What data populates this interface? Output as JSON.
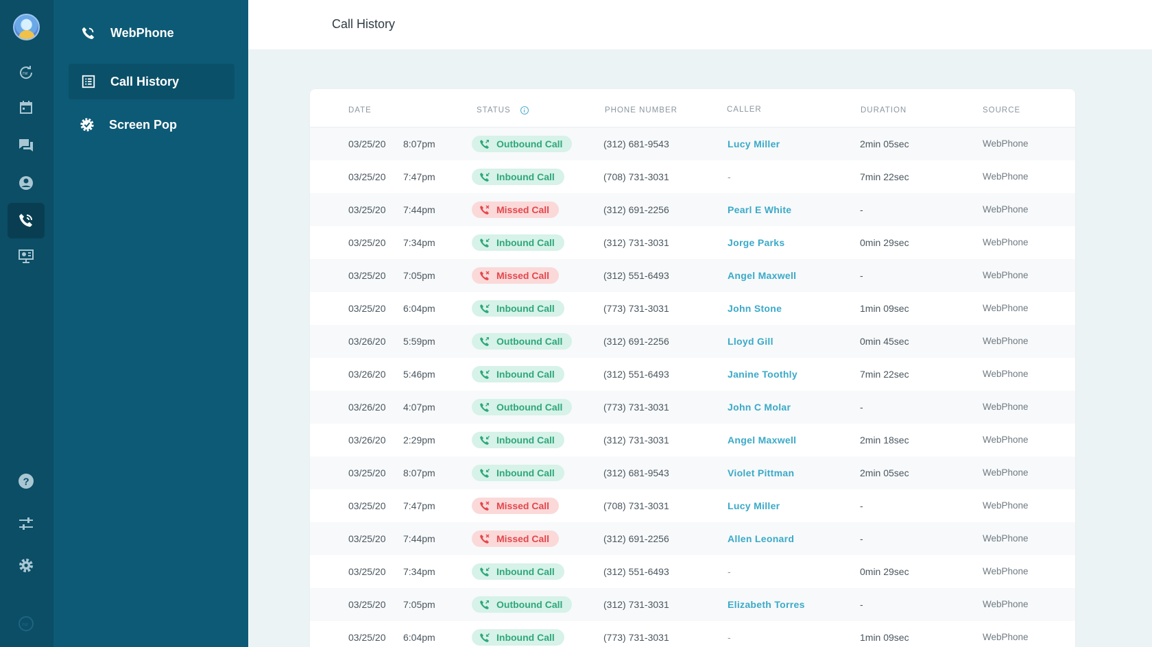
{
  "colors": {
    "rail": "#0b4e66",
    "subnav": "#0d5a76",
    "accent": "#3aa9c8",
    "inbound": "#2ea77b",
    "missed": "#e2474c"
  },
  "rail": {
    "icons": [
      "refresh-rw-icon",
      "calendar-icon",
      "chat-icon",
      "user-icon",
      "phone-icon",
      "screen-pop-icon",
      "help-icon",
      "sliders-icon",
      "gear-icon",
      "rw-logo-icon"
    ]
  },
  "subnav": {
    "items": [
      {
        "label": "WebPhone",
        "icon": "webphone-icon"
      },
      {
        "label": "Call History",
        "icon": "list-icon"
      },
      {
        "label": "Screen Pop",
        "icon": "badge-icon"
      }
    ]
  },
  "header": {
    "title": "Call History"
  },
  "table": {
    "columns": [
      "DATE",
      "STATUS",
      "PHONE NUMBER",
      "CALLER",
      "DURATION",
      "SOURCE"
    ],
    "rows": [
      {
        "date": "03/25/20",
        "time": "8:07pm",
        "status": "Outbound Call",
        "type": "out",
        "phone": "(312) 681-9543",
        "caller": "Lucy Miller",
        "duration": "2min 05sec",
        "source": "WebPhone"
      },
      {
        "date": "03/25/20",
        "time": "7:47pm",
        "status": "Inbound Call",
        "type": "in",
        "phone": "(708) 731-3031",
        "caller": "-",
        "duration": "7min 22sec",
        "source": "WebPhone"
      },
      {
        "date": "03/25/20",
        "time": "7:44pm",
        "status": "Missed Call",
        "type": "miss",
        "phone": "(312) 691-2256",
        "caller": "Pearl E White",
        "duration": "-",
        "source": "WebPhone"
      },
      {
        "date": "03/25/20",
        "time": "7:34pm",
        "status": "Inbound Call",
        "type": "in",
        "phone": "(312) 731-3031",
        "caller": "Jorge Parks",
        "duration": "0min 29sec",
        "source": "WebPhone"
      },
      {
        "date": "03/25/20",
        "time": "7:05pm",
        "status": "Missed Call",
        "type": "miss",
        "phone": "(312) 551-6493",
        "caller": "Angel Maxwell",
        "duration": "-",
        "source": "WebPhone"
      },
      {
        "date": "03/25/20",
        "time": "6:04pm",
        "status": "Inbound Call",
        "type": "in",
        "phone": "(773) 731-3031",
        "caller": "John Stone",
        "duration": "1min 09sec",
        "source": "WebPhone"
      },
      {
        "date": "03/26/20",
        "time": "5:59pm",
        "status": "Outbound Call",
        "type": "out",
        "phone": "(312) 691-2256",
        "caller": "Lloyd Gill",
        "duration": "0min 45sec",
        "source": "WebPhone"
      },
      {
        "date": "03/26/20",
        "time": "5:46pm",
        "status": "Inbound Call",
        "type": "in",
        "phone": "(312) 551-6493",
        "caller": "Janine Toothly",
        "duration": "7min 22sec",
        "source": "WebPhone"
      },
      {
        "date": "03/26/20",
        "time": "4:07pm",
        "status": "Outbound Call",
        "type": "out",
        "phone": "(773) 731-3031",
        "caller": "John C Molar",
        "duration": "-",
        "source": "WebPhone"
      },
      {
        "date": "03/26/20",
        "time": "2:29pm",
        "status": "Inbound Call",
        "type": "in",
        "phone": "(312) 731-3031",
        "caller": "Angel Maxwell",
        "duration": "2min 18sec",
        "source": "WebPhone"
      },
      {
        "date": "03/25/20",
        "time": "8:07pm",
        "status": "Inbound Call",
        "type": "in",
        "phone": "(312) 681-9543",
        "caller": "Violet Pittman",
        "duration": "2min 05sec",
        "source": "WebPhone"
      },
      {
        "date": "03/25/20",
        "time": "7:47pm",
        "status": "Missed Call",
        "type": "miss",
        "phone": "(708) 731-3031",
        "caller": "Lucy Miller",
        "duration": "-",
        "source": "WebPhone"
      },
      {
        "date": "03/25/20",
        "time": "7:44pm",
        "status": "Missed Call",
        "type": "miss",
        "phone": "(312) 691-2256",
        "caller": "Allen Leonard",
        "duration": "-",
        "source": "WebPhone"
      },
      {
        "date": "03/25/20",
        "time": "7:34pm",
        "status": "Inbound Call",
        "type": "in",
        "phone": "(312) 551-6493",
        "caller": "-",
        "duration": "0min 29sec",
        "source": "WebPhone"
      },
      {
        "date": "03/25/20",
        "time": "7:05pm",
        "status": "Outbound Call",
        "type": "out",
        "phone": "(312) 731-3031",
        "caller": "Elizabeth Torres",
        "duration": "-",
        "source": "WebPhone"
      },
      {
        "date": "03/25/20",
        "time": "6:04pm",
        "status": "Inbound Call",
        "type": "in",
        "phone": "(773) 731-3031",
        "caller": "-",
        "duration": "1min 09sec",
        "source": "WebPhone"
      }
    ]
  }
}
